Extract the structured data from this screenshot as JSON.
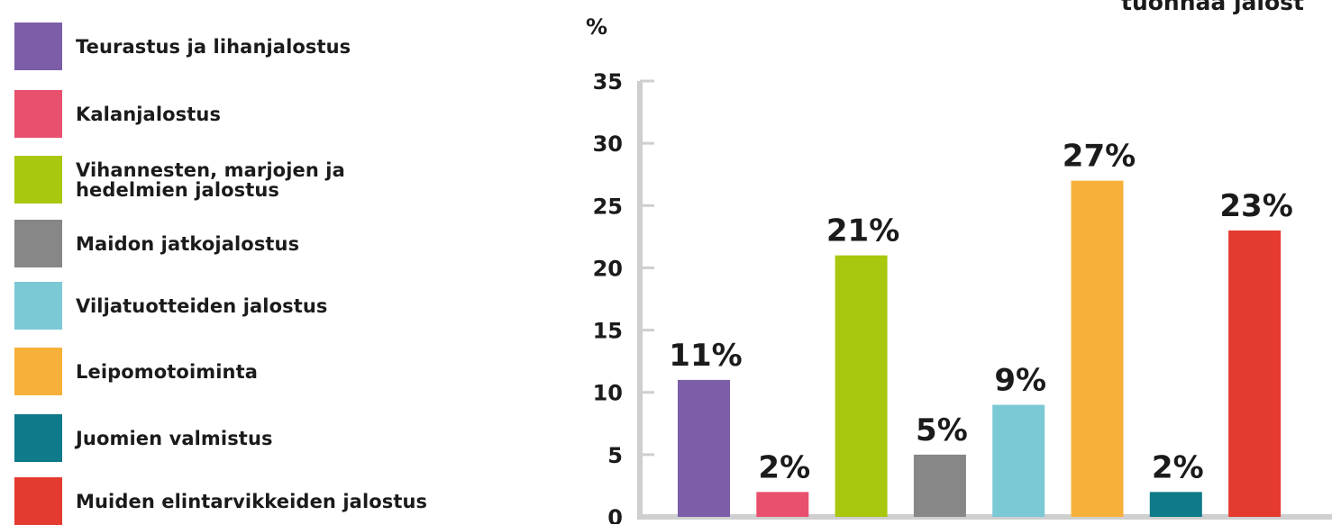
{
  "title": "tuonnaa jalost",
  "legend": [
    {
      "label": "Teurastus ja lihanjalostus",
      "color": "#7b5ea7"
    },
    {
      "label": "Kalanjalostus",
      "color": "#e8506e"
    },
    {
      "label": "Vihannesten, marjojen ja\nhedelmien jalostus",
      "color": "#a8c70f"
    },
    {
      "label": "Maidon jatkojalostus",
      "color": "#878787"
    },
    {
      "label": "Viljatuotteiden jalostus",
      "color": "#7cc9d6"
    },
    {
      "label": "Leipomotoiminta",
      "color": "#f7b03a"
    },
    {
      "label": "Juomien valmistus",
      "color": "#0f7a89"
    },
    {
      "label": "Muiden elintarvikkeiden jalostus",
      "color": "#e53a2f"
    }
  ],
  "chart_data": {
    "type": "bar",
    "title": "",
    "ylabel": "%",
    "xlabel": "",
    "ylim": [
      0,
      35
    ],
    "yticks": [
      0,
      5,
      10,
      15,
      20,
      25,
      30,
      35
    ],
    "grid": false,
    "legend_position": "left",
    "categories": [
      "Teurastus ja lihanjalostus",
      "Kalanjalostus",
      "Vihannesten, marjojen ja hedelmien jalostus",
      "Maidon jatkojalostus",
      "Viljatuotteiden jalostus",
      "Leipomotoiminta",
      "Juomien valmistus",
      "Muiden elintarvikkeiden jalostus"
    ],
    "values": [
      11,
      2,
      21,
      5,
      9,
      27,
      2,
      23
    ],
    "value_labels": [
      "11%",
      "2%",
      "21%",
      "5%",
      "9%",
      "27%",
      "2%",
      "23%"
    ],
    "colors": [
      "#7b5ea7",
      "#e8506e",
      "#a8c70f",
      "#878787",
      "#7cc9d6",
      "#f7b03a",
      "#0f7a89",
      "#e53a2f"
    ],
    "axis_color": "#cfcfcf"
  }
}
